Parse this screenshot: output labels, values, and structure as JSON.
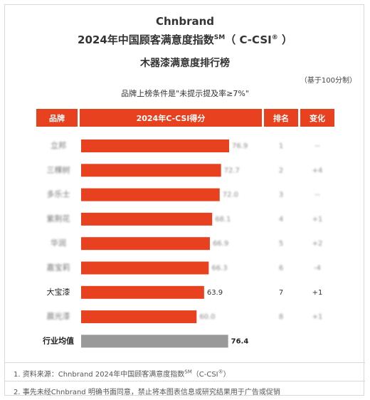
{
  "header": {
    "brand": "Chnbrand",
    "title_line2": "2024年中国顾客满意度指数",
    "sm_mark": "SM",
    "csi_prefix": "（ C-CSI",
    "reg_mark": "®",
    "csi_suffix": " ）",
    "subtitle": "木器漆满意度排行榜",
    "basis": "（基于100分制）",
    "condition": "品牌上榜条件是\"未提示提及率≥7%\""
  },
  "table_headers": {
    "brand": "品牌",
    "score": "2024年C-CSI得分",
    "rank": "排名",
    "change": "变化"
  },
  "chart_data": {
    "type": "bar",
    "orientation": "horizontal",
    "categories": [
      "立邦",
      "三棵树",
      "多乐士",
      "紫荆花",
      "华润",
      "嘉宝莉",
      "大宝漆",
      "晨光漆"
    ],
    "values": [
      76.9,
      72.7,
      72.0,
      68.1,
      66.9,
      66.3,
      63.9,
      60.0
    ],
    "ranks": [
      "1",
      "2",
      "3",
      "4",
      "5",
      "6",
      "7",
      "8"
    ],
    "changes": [
      "--",
      "+4",
      "--",
      "+1",
      "+2",
      "-4",
      "+1",
      "+1"
    ],
    "blurred": [
      true,
      true,
      true,
      true,
      true,
      true,
      false,
      true
    ],
    "average": {
      "label": "行业均值",
      "value": 76.4
    },
    "xlim": [
      0,
      100
    ],
    "colors": {
      "bar": "#e8411f",
      "average_bar": "#999999"
    }
  },
  "footnotes": {
    "note1_prefix": "1. 资料来源：Chnbrand 2024年中国顾客满意度指数",
    "note1_sm": "SM",
    "note1_mid": "（C-CSI",
    "note1_reg": "®",
    "note1_end": "）",
    "note2": "2. 事先未经Chnbrand 明确书面同意，禁止将本图表信息或研究结果用于广告或促销"
  }
}
